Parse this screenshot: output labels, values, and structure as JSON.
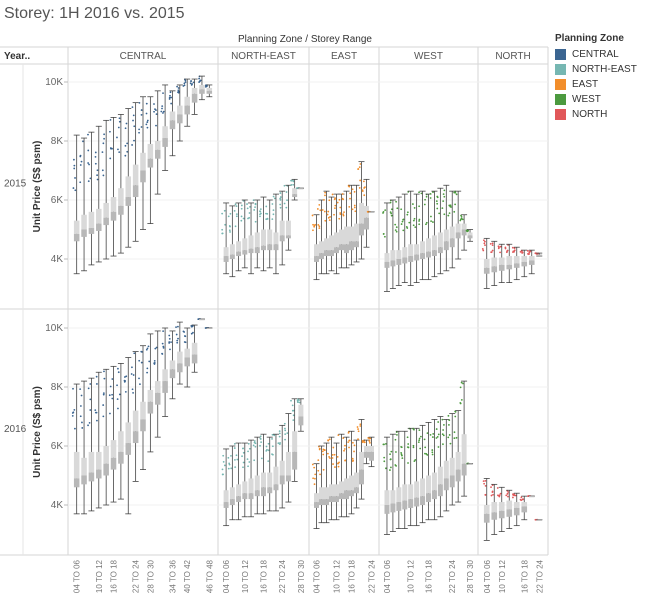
{
  "title": "Storey: 1H 2016 vs. 2015",
  "header": {
    "column_header": "Planning Zone / Storey Range",
    "row_header": "Year.."
  },
  "legend": {
    "title": "Planning Zone",
    "items": [
      {
        "label": "CENTRAL",
        "color": "#3b6591"
      },
      {
        "label": "NORTH-EAST",
        "color": "#76b7b2"
      },
      {
        "label": "EAST",
        "color": "#f28e2b"
      },
      {
        "label": "WEST",
        "color": "#4c9a3f"
      },
      {
        "label": "NORTH",
        "color": "#e15759"
      }
    ]
  },
  "chart_data": {
    "type": "box",
    "ylabel": "Unit Price (S$ psm)",
    "y_ticks": [
      "4K",
      "6K",
      "8K",
      "10K"
    ],
    "y_tick_values": [
      4000,
      6000,
      8000,
      10000
    ],
    "ylim": [
      2800,
      10500
    ],
    "years": [
      "2015",
      "2016"
    ],
    "zones": [
      {
        "name": "CENTRAL",
        "color": "#3b6591",
        "categories": [
          "04 TO 06",
          "10 TO 12",
          "16 TO 18",
          "22 TO 24",
          "28 TO 30",
          "34 TO 36",
          "40 TO 42",
          "46 TO 48"
        ],
        "x_labels": [
          "04 TO 06",
          "10 TO 12",
          "16 TO 18",
          "22 TO 24",
          "28 TO 30",
          "34 TO 36",
          "40 TO 42",
          "46 TO 48"
        ],
        "boxes": {
          "2015": [
            [
              3500,
              4600,
              4850,
              5300,
              8200
            ],
            [
              3600,
              4750,
              5000,
              5500,
              8100
            ],
            [
              3800,
              4850,
              5050,
              5600,
              8300
            ],
            [
              3900,
              4950,
              5200,
              5700,
              8500
            ],
            [
              4000,
              5150,
              5400,
              5900,
              8700
            ],
            [
              4100,
              5300,
              5600,
              6100,
              8800
            ],
            [
              4200,
              5500,
              5800,
              6400,
              8900
            ],
            [
              4400,
              5800,
              6100,
              6800,
              9100
            ],
            [
              4600,
              6100,
              6500,
              7200,
              9300
            ],
            [
              5000,
              6600,
              7000,
              7600,
              9500
            ],
            [
              5200,
              7100,
              7400,
              7900,
              9500
            ],
            [
              6200,
              7400,
              7700,
              8000,
              9700
            ],
            [
              7000,
              7800,
              8100,
              8500,
              9900
            ],
            [
              7500,
              8400,
              8700,
              9000,
              9700
            ],
            [
              8000,
              8600,
              8900,
              9200,
              9900
            ],
            [
              8500,
              8900,
              9200,
              9500,
              10100
            ],
            [
              8900,
              9300,
              9600,
              9800,
              10100
            ],
            [
              9400,
              9600,
              9750,
              9900,
              10200
            ],
            [
              9500,
              9600,
              9700,
              9800,
              9900
            ]
          ],
          "2016": [
            [
              3700,
              4600,
              4900,
              5800,
              8100
            ],
            [
              3700,
              4700,
              5000,
              5600,
              8200
            ],
            [
              3800,
              4800,
              5100,
              5800,
              8300
            ],
            [
              3900,
              4900,
              5200,
              5800,
              8500
            ],
            [
              4000,
              5000,
              5400,
              6000,
              8600
            ],
            [
              4100,
              5200,
              5600,
              6200,
              8700
            ],
            [
              4200,
              5400,
              5800,
              6500,
              8800
            ],
            [
              3700,
              5700,
              6100,
              6800,
              9000
            ],
            [
              4800,
              6100,
              6500,
              7200,
              9200
            ],
            [
              5200,
              6500,
              6900,
              7500,
              9400
            ],
            [
              5800,
              7100,
              7500,
              7900,
              9800
            ],
            [
              6300,
              7400,
              7800,
              8200,
              9900
            ],
            [
              7000,
              7800,
              8200,
              8600,
              10000
            ],
            [
              7600,
              8300,
              8600,
              8900,
              9900
            ],
            [
              8100,
              8500,
              8800,
              9200,
              10200
            ],
            [
              8000,
              8700,
              9000,
              9300,
              10000
            ],
            [
              8500,
              8800,
              9100,
              9500,
              10100
            ],
            [
              10300,
              10300,
              10300,
              10300,
              10300
            ],
            [
              10000,
              10000,
              10000,
              10000,
              10000
            ]
          ]
        }
      },
      {
        "name": "NORTH-EAST",
        "color": "#76b7b2",
        "x_labels": [
          "04 TO 06",
          "10 TO 12",
          "16 TO 18",
          "22 TO 24",
          "28 TO 30"
        ],
        "boxes": {
          "2015": [
            [
              3500,
              3900,
              4100,
              4400,
              5900
            ],
            [
              3400,
              4000,
              4150,
              4500,
              5800
            ],
            [
              3600,
              4100,
              4250,
              4600,
              5900
            ],
            [
              3700,
              4150,
              4300,
              4700,
              6000
            ],
            [
              3500,
              4200,
              4350,
              4800,
              5900
            ],
            [
              3700,
              4200,
              4400,
              4900,
              6000
            ],
            [
              3600,
              4300,
              4450,
              5000,
              6100
            ],
            [
              3700,
              4300,
              4500,
              5000,
              6000
            ],
            [
              3500,
              4300,
              4500,
              4900,
              6200
            ],
            [
              3800,
              4600,
              4800,
              5300,
              6300
            ],
            [
              4300,
              4700,
              4800,
              5300,
              6500
            ],
            [
              6000,
              6100,
              6200,
              6400,
              6700
            ],
            [
              6400,
              6400,
              6400,
              6400,
              6400
            ]
          ],
          "2016": [
            [
              3300,
              3900,
              4100,
              4500,
              5900
            ],
            [
              3500,
              4000,
              4200,
              4600,
              6000
            ],
            [
              3500,
              4100,
              4300,
              4700,
              6100
            ],
            [
              3600,
              4200,
              4400,
              4800,
              6100
            ],
            [
              3600,
              4200,
              4400,
              4900,
              6200
            ],
            [
              3700,
              4300,
              4500,
              5000,
              6300
            ],
            [
              3700,
              4300,
              4600,
              5100,
              6400
            ],
            [
              3800,
              4400,
              4600,
              5100,
              6300
            ],
            [
              3800,
              4500,
              4700,
              5300,
              6400
            ],
            [
              3900,
              4700,
              5000,
              5500,
              6700
            ],
            [
              4100,
              4800,
              5000,
              5800,
              7100
            ],
            [
              4800,
              5200,
              5800,
              6500,
              7600
            ],
            [
              6500,
              6700,
              7000,
              7400,
              7600
            ]
          ]
        }
      },
      {
        "name": "EAST",
        "color": "#f28e2b",
        "x_labels": [
          "04 TO 06",
          "10 TO 12",
          "16 TO 18",
          "22 TO 24"
        ],
        "boxes": {
          "2015": [
            [
              3300,
              3900,
              4100,
              4500,
              5500
            ],
            [
              3500,
              4000,
              4200,
              4600,
              6000
            ],
            [
              3500,
              4100,
              4300,
              4700,
              6300
            ],
            [
              3600,
              4100,
              4300,
              4800,
              6100
            ],
            [
              3500,
              4200,
              4400,
              4900,
              6200
            ],
            [
              3700,
              4300,
              4500,
              5000,
              6200
            ],
            [
              3700,
              4200,
              4500,
              5100,
              6300
            ],
            [
              3800,
              4300,
              4600,
              5100,
              6500
            ],
            [
              3900,
              4400,
              4600,
              5200,
              6500
            ],
            [
              4000,
              4800,
              5200,
              5900,
              7300
            ],
            [
              4400,
              5000,
              5400,
              5800,
              6700
            ],
            [
              5600,
              5600,
              5600,
              5600,
              5600
            ]
          ],
          "2016": [
            [
              3200,
              3900,
              4100,
              4400,
              5400
            ],
            [
              3400,
              4000,
              4200,
              4600,
              6000
            ],
            [
              3400,
              4000,
              4200,
              4600,
              6100
            ],
            [
              3500,
              4100,
              4300,
              4700,
              6300
            ],
            [
              3500,
              4100,
              4300,
              4700,
              6100
            ],
            [
              3600,
              4200,
              4400,
              4800,
              6400
            ],
            [
              3600,
              4200,
              4500,
              4900,
              6300
            ],
            [
              3700,
              4300,
              4500,
              5000,
              6500
            ],
            [
              3900,
              4400,
              4600,
              5100,
              6200
            ],
            [
              4200,
              4700,
              5200,
              5800,
              6900
            ],
            [
              5400,
              5600,
              5800,
              6000,
              6200
            ],
            [
              5300,
              5500,
              5800,
              6000,
              6300
            ]
          ]
        }
      },
      {
        "name": "WEST",
        "color": "#4c9a3f",
        "x_labels": [
          "04 TO 06",
          "10 TO 12",
          "16 TO 18",
          "22 TO 24",
          "28 TO 30"
        ],
        "boxes": {
          "2015": [
            [
              2900,
              3700,
              3900,
              4200,
              5900
            ],
            [
              3000,
              3750,
              3950,
              4300,
              6000
            ],
            [
              3100,
              3800,
              4000,
              4300,
              6100
            ],
            [
              3200,
              3850,
              4050,
              4400,
              6200
            ],
            [
              3100,
              3900,
              4100,
              4500,
              6300
            ],
            [
              3200,
              3950,
              4150,
              4500,
              6200
            ],
            [
              3300,
              4000,
              4200,
              4600,
              6300
            ],
            [
              3300,
              4050,
              4250,
              4700,
              6200
            ],
            [
              3400,
              4100,
              4300,
              4800,
              6300
            ],
            [
              3500,
              4200,
              4400,
              4900,
              6400
            ],
            [
              3600,
              4300,
              4600,
              5000,
              6500
            ],
            [
              3700,
              4400,
              4700,
              5100,
              6300
            ],
            [
              4000,
              4700,
              4900,
              5200,
              6300
            ],
            [
              4300,
              4800,
              5000,
              5200,
              5500
            ],
            [
              4600,
              4700,
              4800,
              4900,
              5000
            ]
          ],
          "2016": [
            [
              3000,
              3700,
              4000,
              4500,
              6300
            ],
            [
              3100,
              3750,
              4050,
              4500,
              6400
            ],
            [
              3200,
              3800,
              4100,
              4600,
              6500
            ],
            [
              3200,
              3850,
              4150,
              4700,
              6500
            ],
            [
              3300,
              3900,
              4200,
              4700,
              6600
            ],
            [
              3300,
              3950,
              4250,
              4800,
              6600
            ],
            [
              3400,
              4000,
              4300,
              4900,
              6700
            ],
            [
              3500,
              4100,
              4400,
              5000,
              6800
            ],
            [
              3500,
              4200,
              4500,
              5100,
              6900
            ],
            [
              3600,
              4300,
              4700,
              5300,
              7000
            ],
            [
              3800,
              4500,
              4900,
              5500,
              6900
            ],
            [
              4000,
              4600,
              5000,
              5600,
              7100
            ],
            [
              4100,
              4800,
              5200,
              5800,
              7200
            ],
            [
              4300,
              5000,
              5400,
              6400,
              8200
            ],
            [
              5400,
              5400,
              5400,
              5400,
              5400
            ]
          ]
        }
      },
      {
        "name": "NORTH",
        "color": "#e15759",
        "x_labels": [
          "04 TO 06",
          "10 TO 12",
          "16 TO 18",
          "22 TO 24"
        ],
        "boxes": {
          "2015": [
            [
              3000,
              3500,
              3700,
              4000,
              4700
            ],
            [
              3100,
              3550,
              3750,
              4050,
              4600
            ],
            [
              3200,
              3600,
              3800,
              4050,
              4500
            ],
            [
              3200,
              3650,
              3800,
              4100,
              4500
            ],
            [
              3300,
              3700,
              3850,
              4100,
              4400
            ],
            [
              3400,
              3750,
              3900,
              4100,
              4300
            ],
            [
              3500,
              3800,
              3950,
              4100,
              4300
            ],
            [
              4100,
              4100,
              4150,
              4150,
              4200
            ]
          ],
          "2016": [
            [
              2800,
              3400,
              3700,
              4000,
              4900
            ],
            [
              3000,
              3500,
              3750,
              4100,
              4700
            ],
            [
              3100,
              3550,
              3800,
              4100,
              4600
            ],
            [
              3200,
              3600,
              3850,
              4150,
              4500
            ],
            [
              3300,
              3650,
              3900,
              4100,
              4400
            ],
            [
              3500,
              3750,
              3950,
              4100,
              4300
            ],
            [
              4300,
              4300,
              4300,
              4300,
              4300
            ],
            [
              3500,
              3500,
              3500,
              3500,
              3500
            ]
          ]
        }
      }
    ]
  }
}
